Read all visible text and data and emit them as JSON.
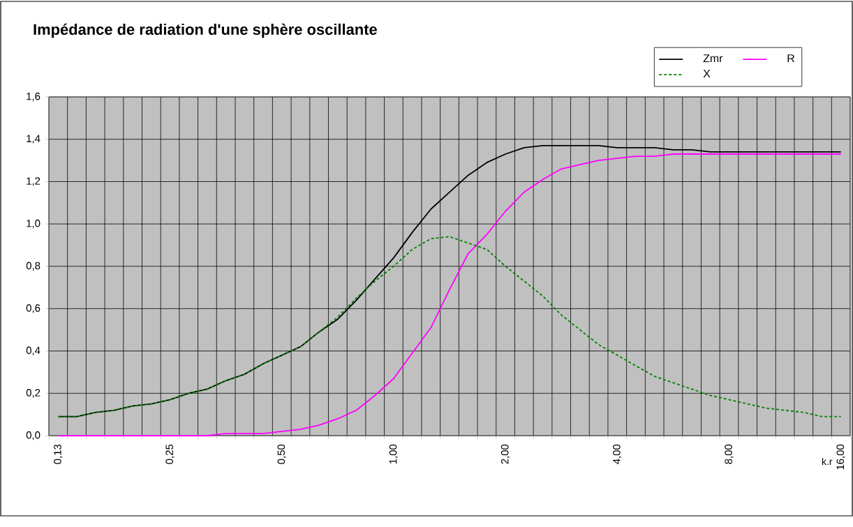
{
  "chart_data": {
    "type": "line",
    "title": "Impédance de radiation d'une sphère oscillante",
    "xlabel": "k.r",
    "categories": [
      "0,13",
      null,
      null,
      null,
      null,
      null,
      "0,25",
      null,
      null,
      null,
      null,
      null,
      "0,50",
      null,
      null,
      null,
      null,
      null,
      "1,00",
      null,
      null,
      null,
      null,
      null,
      "2,00",
      null,
      null,
      null,
      null,
      null,
      "4,00",
      null,
      null,
      null,
      null,
      null,
      "8,00",
      null,
      null,
      null,
      null,
      null,
      "16,00"
    ],
    "series": [
      {
        "name": "Zmr",
        "color": "#000000",
        "line_style": "solid",
        "values": [
          0.09,
          0.09,
          0.11,
          0.12,
          0.14,
          0.15,
          0.17,
          0.2,
          0.22,
          0.26,
          0.29,
          0.34,
          0.38,
          0.42,
          0.49,
          0.55,
          0.64,
          0.74,
          0.84,
          0.96,
          1.07,
          1.15,
          1.23,
          1.29,
          1.33,
          1.36,
          1.37,
          1.37,
          1.37,
          1.37,
          1.36,
          1.36,
          1.36,
          1.35,
          1.35,
          1.34,
          1.34,
          1.34,
          1.34,
          1.34,
          1.34,
          1.34,
          1.34
        ]
      },
      {
        "name": "R",
        "color": "#ff00ff",
        "line_style": "solid",
        "values": [
          0.0,
          0.0,
          0.0,
          0.0,
          0.0,
          0.0,
          0.0,
          0.0,
          0.0,
          0.01,
          0.01,
          0.01,
          0.02,
          0.03,
          0.05,
          0.08,
          0.12,
          0.19,
          0.27,
          0.39,
          0.51,
          0.69,
          0.86,
          0.95,
          1.06,
          1.15,
          1.21,
          1.26,
          1.28,
          1.3,
          1.31,
          1.32,
          1.32,
          1.33,
          1.33,
          1.33,
          1.33,
          1.33,
          1.33,
          1.33,
          1.33,
          1.33,
          1.33
        ]
      },
      {
        "name": "X",
        "color": "#008000",
        "line_style": "dotted",
        "values": [
          0.09,
          0.09,
          0.11,
          0.12,
          0.14,
          0.15,
          0.17,
          0.2,
          0.22,
          0.26,
          0.29,
          0.34,
          0.38,
          0.42,
          0.49,
          0.56,
          0.65,
          0.73,
          0.8,
          0.88,
          0.93,
          0.94,
          0.91,
          0.88,
          0.8,
          0.73,
          0.66,
          0.57,
          0.5,
          0.43,
          0.38,
          0.33,
          0.28,
          0.25,
          0.22,
          0.19,
          0.17,
          0.15,
          0.13,
          0.12,
          0.11,
          0.09,
          0.09
        ]
      }
    ],
    "ylim": [
      0,
      1.6
    ],
    "yticks": [
      {
        "value": 0,
        "label": "0,0"
      },
      {
        "value": 0.2,
        "label": "0,2"
      },
      {
        "value": 0.4,
        "label": "0,4"
      },
      {
        "value": 0.6,
        "label": "0,6"
      },
      {
        "value": 0.8,
        "label": "0,8"
      },
      {
        "value": 1.0,
        "label": "1,0"
      },
      {
        "value": 1.2,
        "label": "1,2"
      },
      {
        "value": 1.4,
        "label": "1,4"
      },
      {
        "value": 1.6,
        "label": "1,6"
      }
    ],
    "grid": true,
    "legend": "top right"
  }
}
